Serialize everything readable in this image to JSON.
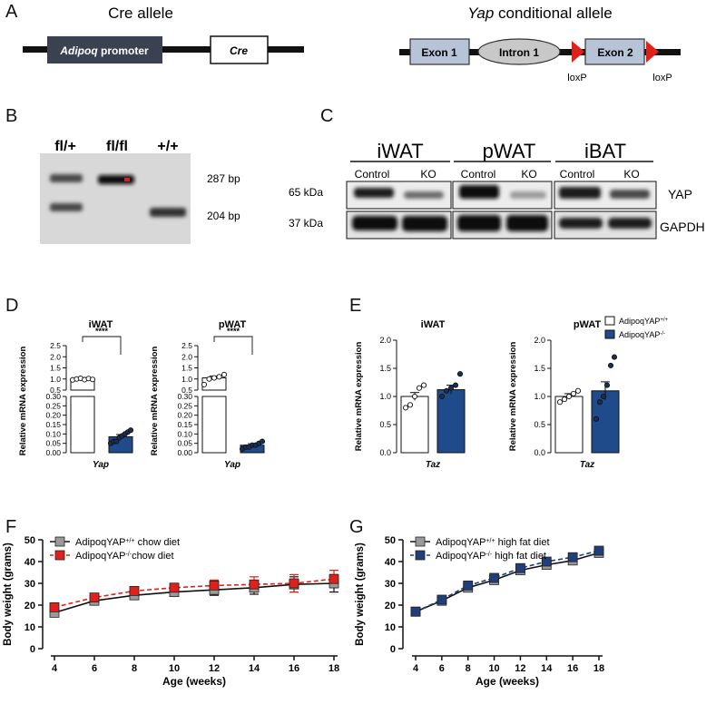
{
  "panels": {
    "A": "A",
    "B": "B",
    "C": "C",
    "D": "D",
    "E": "E",
    "F": "F",
    "G": "G"
  },
  "panel_a": {
    "cre_title": "Cre allele",
    "yap_title_italic": "Yap",
    "yap_title_rest": " conditional allele",
    "promoter_italic": "Adipoq",
    "promoter_rest": " promoter",
    "cre_box": "Cre",
    "exon1": "Exon 1",
    "intron1": "Intron 1",
    "exon2": "Exon 2",
    "loxp1": "loxP",
    "loxp2": "loxP",
    "colors": {
      "promoter": "#3a4252",
      "exon": "#b7c3d6",
      "intron": "#c8c8c8",
      "loxp": "#e0201b"
    }
  },
  "panel_b": {
    "lanes": [
      "fl/+",
      "fl/fl",
      "+/+"
    ],
    "band_upper": "287 bp",
    "band_lower": "204 bp"
  },
  "panel_c": {
    "tissues": [
      "iWAT",
      "pWAT",
      "iBAT"
    ],
    "conditions": [
      "Control",
      "KO",
      "Control",
      "KO",
      "Control",
      "KO"
    ],
    "kda_upper": "65 kDa",
    "kda_lower": "37 kDa",
    "protein_upper": "YAP",
    "protein_lower": "GAPDH"
  },
  "legend_e": {
    "items": [
      {
        "name_base": "AdipoqYAP",
        "name_sup": "+/+",
        "fill": "#ffffff"
      },
      {
        "name_base": "AdipoqYAP",
        "name_sup": "-/-",
        "fill": "#1f4b8a"
      }
    ]
  },
  "chart_data": [
    {
      "panel": "D",
      "type": "bar",
      "title": "iWAT",
      "xlabel": "Yap",
      "ylabel": "Relative mRNA expression",
      "axis_break": true,
      "upper_range": [
        0.5,
        2.5
      ],
      "lower_range": [
        0,
        0.3
      ],
      "upper_ticks": [
        "0.5",
        "1.0",
        "1.5",
        "2.0",
        "2.5"
      ],
      "lower_ticks": [
        "0.00",
        "0.05",
        "0.10",
        "0.15",
        "0.20",
        "0.25",
        "0.30"
      ],
      "significance": "****",
      "series": [
        {
          "name": "AdipoqYAP+/+",
          "mean": 1.0,
          "sem": 0.04,
          "points": [
            0.96,
            1.0,
            1.03,
            0.97,
            1.02,
            0.98
          ]
        },
        {
          "name": "AdipoqYAP-/-",
          "mean": 0.085,
          "sem": 0.012,
          "points": [
            0.05,
            0.06,
            0.06,
            0.08,
            0.09,
            0.1,
            0.11,
            0.12
          ]
        }
      ]
    },
    {
      "panel": "D",
      "type": "bar",
      "title": "pWAT",
      "xlabel": "Yap",
      "ylabel": "Relative mRNA expression",
      "axis_break": true,
      "upper_range": [
        0.5,
        2.5
      ],
      "lower_range": [
        0,
        0.3
      ],
      "upper_ticks": [
        "0.5",
        "1.0",
        "1.5",
        "2.0",
        "2.5"
      ],
      "lower_ticks": [
        "0.00",
        "0.05",
        "0.10",
        "0.15",
        "0.20",
        "0.25",
        "0.30"
      ],
      "significance": "****",
      "series": [
        {
          "name": "AdipoqYAP+/+",
          "mean": 1.05,
          "sem": 0.08,
          "points": [
            0.75,
            1.0,
            1.05,
            1.1,
            1.2
          ]
        },
        {
          "name": "AdipoqYAP-/-",
          "mean": 0.04,
          "sem": 0.008,
          "points": [
            0.02,
            0.03,
            0.03,
            0.04,
            0.04,
            0.05,
            0.06
          ]
        }
      ]
    },
    {
      "panel": "E",
      "type": "bar",
      "title": "iWAT",
      "xlabel": "Taz",
      "ylabel": "Relative mRNA expression",
      "ylim": [
        0,
        2.0
      ],
      "yticks": [
        "0.0",
        "0.5",
        "1.0",
        "1.5",
        "2.0"
      ],
      "series": [
        {
          "name": "AdipoqYAP+/+",
          "mean": 1.0,
          "sem": 0.07,
          "points": [
            0.8,
            0.85,
            1.0,
            1.15,
            1.2
          ]
        },
        {
          "name": "AdipoqYAP-/-",
          "mean": 1.12,
          "sem": 0.08,
          "points": [
            1.0,
            1.1,
            1.15,
            1.2,
            1.4
          ]
        }
      ]
    },
    {
      "panel": "E",
      "type": "bar",
      "title": "pWAT",
      "xlabel": "Taz",
      "ylabel": "Relative mRNA expression",
      "ylim": [
        0,
        2.0
      ],
      "yticks": [
        "0.0",
        "0.5",
        "1.0",
        "1.5",
        "2.0"
      ],
      "series": [
        {
          "name": "AdipoqYAP+/+",
          "mean": 1.0,
          "sem": 0.05,
          "points": [
            0.9,
            0.95,
            1.0,
            1.05,
            1.1
          ]
        },
        {
          "name": "AdipoqYAP-/-",
          "mean": 1.1,
          "sem": 0.16,
          "points": [
            0.6,
            0.9,
            1.0,
            1.2,
            1.55,
            1.7
          ]
        }
      ]
    },
    {
      "panel": "F",
      "type": "line",
      "xlabel": "Age (weeks)",
      "ylabel": "Body weight (grams)",
      "x": [
        4,
        6,
        8,
        10,
        12,
        14,
        16,
        18
      ],
      "xlim": [
        4,
        18
      ],
      "ylim": [
        0,
        50
      ],
      "xticks": [
        "4",
        "6",
        "8",
        "10",
        "12",
        "14",
        "16",
        "18"
      ],
      "yticks": [
        "0",
        "10",
        "20",
        "30",
        "40",
        "50"
      ],
      "series": [
        {
          "name_base": "AdipoqYAP",
          "name_sup": "+/+",
          "name_rest": " chow diet",
          "color": "#111111",
          "marker_fill": "#9a9a9a",
          "dash": false,
          "values": [
            16.5,
            22,
            24.5,
            26,
            27,
            28,
            29.5,
            30
          ],
          "err": [
            1.2,
            1.5,
            1.5,
            2,
            2.5,
            3,
            3.5,
            4
          ]
        },
        {
          "name_base": "AdipoqYAP",
          "name_sup": "-/-",
          "name_rest": "chow diet",
          "color": "#e0201b",
          "marker_fill": "#e0201b",
          "dash": true,
          "values": [
            19,
            23.5,
            26.5,
            28,
            29,
            29.5,
            30,
            32
          ],
          "err": [
            1.5,
            1.5,
            1.8,
            2,
            2.5,
            3.5,
            4,
            4
          ]
        }
      ]
    },
    {
      "panel": "G",
      "type": "line",
      "xlabel": "Age (weeks)",
      "ylabel": "Body weight (grams)",
      "x": [
        4,
        6,
        8,
        10,
        12,
        14,
        16,
        18
      ],
      "xlim": [
        4,
        18
      ],
      "ylim": [
        0,
        50
      ],
      "xticks": [
        "4",
        "6",
        "8",
        "10",
        "12",
        "14",
        "16",
        "18"
      ],
      "yticks": [
        "0",
        "10",
        "20",
        "30",
        "40",
        "50"
      ],
      "series": [
        {
          "name_base": "AdipoqYAP",
          "name_sup": "+/+",
          "name_rest": " high fat diet",
          "color": "#111111",
          "marker_fill": "#9a9a9a",
          "dash": false,
          "values": [
            17,
            22,
            28,
            31.5,
            36,
            38.5,
            40.5,
            44
          ],
          "err": [
            0.8,
            0.8,
            1,
            1.2,
            1.5,
            1.5,
            1.5,
            1.5
          ]
        },
        {
          "name_base": "AdipoqYAP",
          "name_sup": "-/-",
          "name_rest": " high fat diet",
          "color": "#1f3f7a",
          "marker_fill": "#1f3f7a",
          "dash": true,
          "values": [
            17,
            22.5,
            29,
            32.5,
            37,
            40,
            42,
            45
          ],
          "err": [
            0.8,
            0.8,
            1,
            1.2,
            1.5,
            1.5,
            1.5,
            1.5
          ]
        }
      ]
    }
  ]
}
